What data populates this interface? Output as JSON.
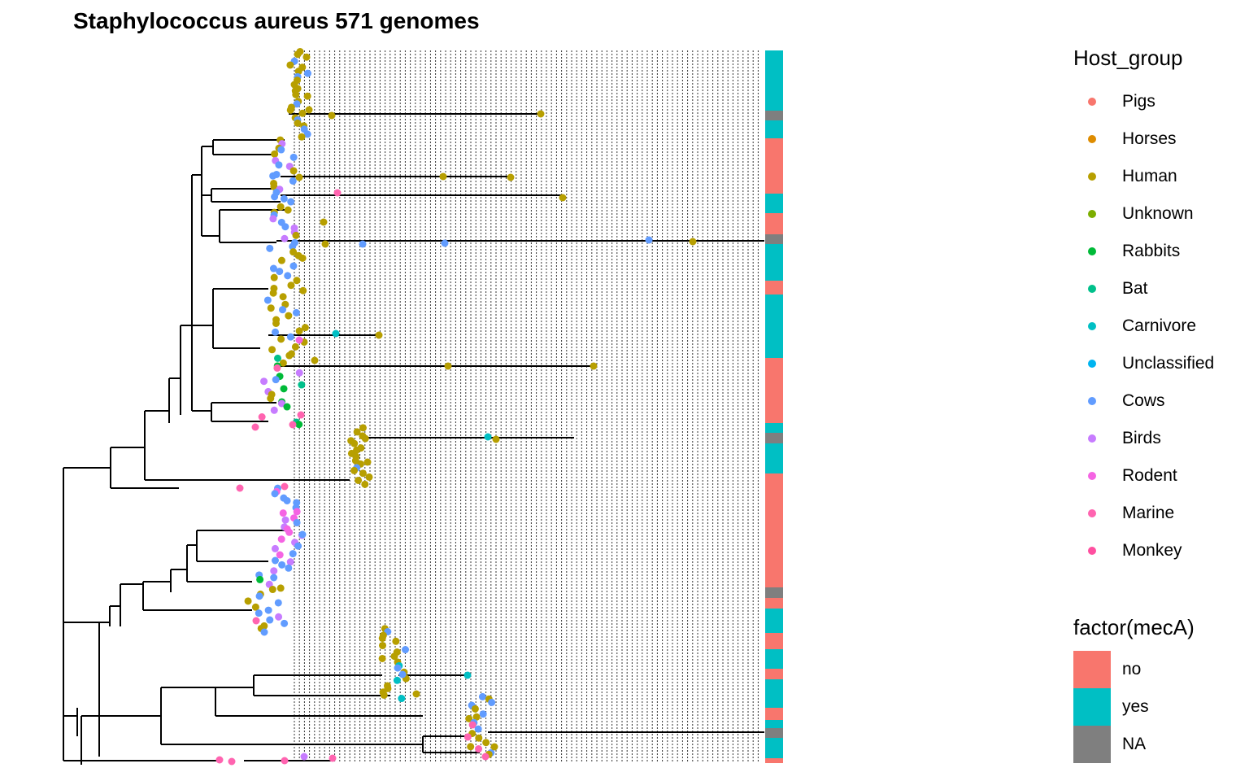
{
  "title": "Staphylococcus aureus 571 genomes",
  "legend_host": {
    "title": "Host_group",
    "items": [
      {
        "label": "Pigs",
        "color": "#F8766D"
      },
      {
        "label": "Horses",
        "color": "#DE8C00"
      },
      {
        "label": "Human",
        "color": "#B79F00"
      },
      {
        "label": "Unknown",
        "color": "#7CAE00"
      },
      {
        "label": "Rabbits",
        "color": "#00BA38"
      },
      {
        "label": "Bat",
        "color": "#00C08B"
      },
      {
        "label": "Carnivore",
        "color": "#00BFC4"
      },
      {
        "label": "Unclassified",
        "color": "#00B4F0"
      },
      {
        "label": "Cows",
        "color": "#619CFF"
      },
      {
        "label": "Birds",
        "color": "#C77CFF"
      },
      {
        "label": "Rodent",
        "color": "#F564E3"
      },
      {
        "label": "Marine",
        "color": "#FF64B0"
      },
      {
        "label": "Monkey",
        "color": "#FF4FA0"
      }
    ]
  },
  "legend_mecA": {
    "title": "factor(mecA)",
    "items": [
      {
        "label": "no",
        "color": "#F8766D"
      },
      {
        "label": "yes",
        "color": "#00BFC4"
      },
      {
        "label": "NA",
        "color": "#7F7F7F"
      }
    ]
  }
}
